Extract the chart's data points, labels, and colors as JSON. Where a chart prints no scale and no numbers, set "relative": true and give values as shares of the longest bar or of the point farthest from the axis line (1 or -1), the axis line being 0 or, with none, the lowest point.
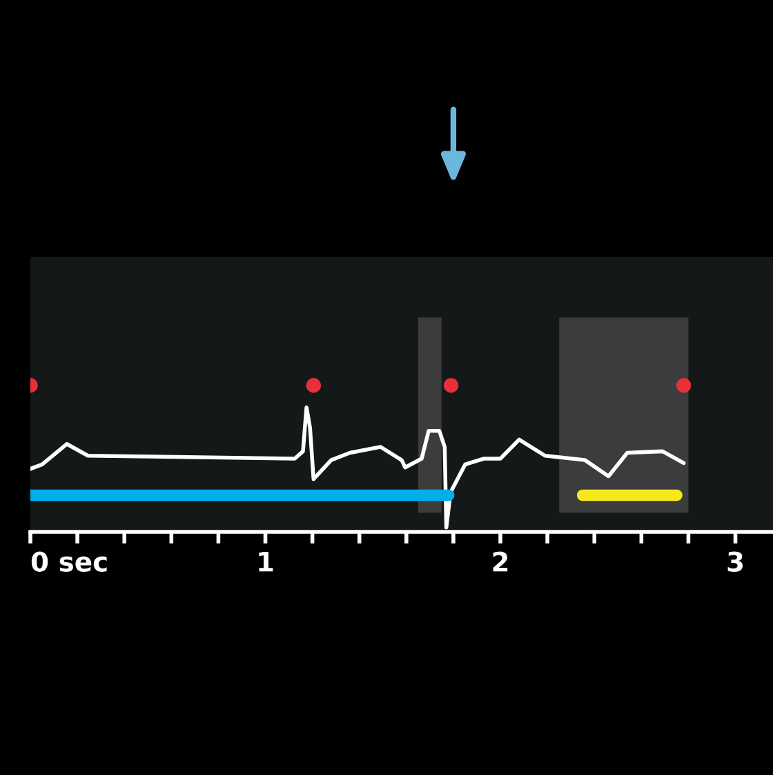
{
  "chart_data": {
    "type": "line",
    "relative": true,
    "grid": false,
    "legend": false,
    "xlim": [
      0,
      3.16
    ],
    "xticks": [
      {
        "value": 0,
        "label": "0 sec"
      },
      {
        "value": 0.2,
        "label": null
      },
      {
        "value": 0.4,
        "label": null
      },
      {
        "value": 0.6,
        "label": null
      },
      {
        "value": 0.8,
        "label": null
      },
      1,
      {
        "value": 1.2,
        "label": null
      },
      {
        "value": 1.4,
        "label": null
      },
      {
        "value": 1.6,
        "label": null
      },
      {
        "value": 1.8,
        "label": null
      },
      2,
      {
        "value": 2.2,
        "label": null
      },
      {
        "value": 2.4,
        "label": null
      },
      {
        "value": 2.6,
        "label": null
      },
      {
        "value": 2.8,
        "label": null
      },
      3
    ],
    "tick_labels": "x",
    "bands": [
      {
        "axis": "x",
        "from": 1.65,
        "to": 1.75,
        "color": "#3c3c3c"
      },
      {
        "axis": "x",
        "from": 2.25,
        "to": 2.8,
        "color": "#3c3c3c"
      }
    ],
    "series": [
      {
        "type": "line",
        "color": "#ffffff",
        "marker": "none",
        "line_style": "solid",
        "x": [
          0.0,
          0.05,
          0.155,
          0.245,
          1.125,
          1.16,
          1.175,
          1.19,
          1.205,
          1.28,
          1.36,
          1.49,
          1.58,
          1.595,
          1.665,
          1.695,
          1.74,
          1.763,
          1.77,
          1.788,
          1.85,
          1.93,
          2.0,
          2.08,
          2.19,
          2.36,
          2.46,
          2.54,
          2.69,
          2.78
        ],
        "values": [
          0.43,
          0.46,
          0.6,
          0.52,
          0.5,
          0.55,
          0.85,
          0.71,
          0.36,
          0.49,
          0.54,
          0.58,
          0.49,
          0.44,
          0.5,
          0.69,
          0.69,
          0.58,
          0.03,
          0.27,
          0.46,
          0.5,
          0.5,
          0.63,
          0.52,
          0.49,
          0.38,
          0.54,
          0.55,
          0.47
        ]
      },
      {
        "type": "scatter",
        "color": "#e8303a",
        "marker": "circle",
        "x": [
          0.0,
          1.205,
          1.79,
          2.78
        ],
        "values": [
          1,
          1,
          1,
          1
        ]
      },
      {
        "type": "line",
        "color": "#00aee8",
        "marker": "none",
        "line_style": "solid",
        "x": [
          0.0,
          1.78
        ],
        "values": [
          0.25,
          0.25
        ]
      },
      {
        "type": "line",
        "color": "#f5e81c",
        "marker": "none",
        "line_style": "solid",
        "x": [
          2.35,
          2.75
        ],
        "values": [
          0.25,
          0.25
        ]
      }
    ]
  }
}
